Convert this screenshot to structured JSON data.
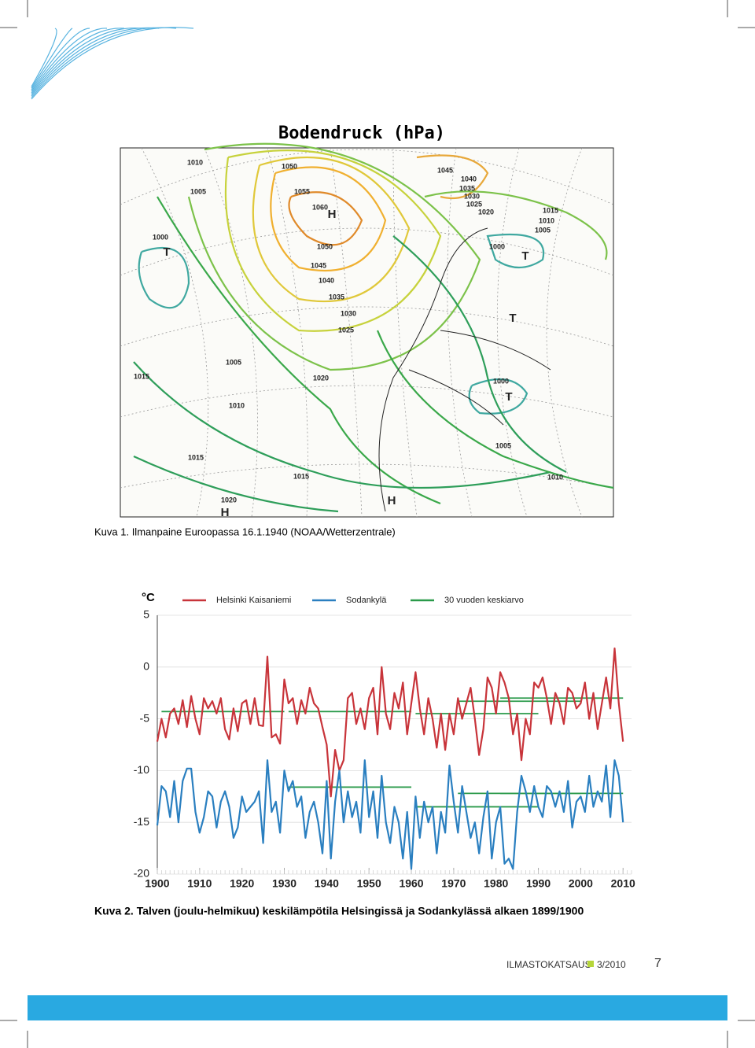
{
  "map": {
    "title": "Bodendruck (hPa)",
    "labels": [
      "1010",
      "1050",
      "1045",
      "1040",
      "1005",
      "1055",
      "1035",
      "1030",
      "1060",
      "H",
      "1025",
      "1020",
      "1015",
      "1010",
      "1005",
      "1000",
      "1050",
      "1000",
      "T",
      "T",
      "1045",
      "1040",
      "1035",
      "1030",
      "T",
      "1025",
      "1005",
      "1015",
      "1020",
      "1000",
      "T",
      "1010",
      "1005",
      "1015",
      "1015",
      "1010",
      "1020",
      "H",
      "H"
    ]
  },
  "captions": [
    "Kuva 1. Ilmanpaine Euroopassa 16.1.1940 (NOAA/Wetterzentrale)",
    "Kuva 2. Talven (joulu-helmikuu) keskilämpötila Helsingissä ja Sodankylässä alkaen 1899/1900"
  ],
  "chart_data": {
    "type": "line",
    "y_unit": "°C",
    "x": [
      1900,
      1901,
      1902,
      1903,
      1904,
      1905,
      1906,
      1907,
      1908,
      1909,
      1910,
      1911,
      1912,
      1913,
      1914,
      1915,
      1916,
      1917,
      1918,
      1919,
      1920,
      1921,
      1922,
      1923,
      1924,
      1925,
      1926,
      1927,
      1928,
      1929,
      1930,
      1931,
      1932,
      1933,
      1934,
      1935,
      1936,
      1937,
      1938,
      1939,
      1940,
      1941,
      1942,
      1943,
      1944,
      1945,
      1946,
      1947,
      1948,
      1949,
      1950,
      1951,
      1952,
      1953,
      1954,
      1955,
      1956,
      1957,
      1958,
      1959,
      1960,
      1961,
      1962,
      1963,
      1964,
      1965,
      1966,
      1967,
      1968,
      1969,
      1970,
      1971,
      1972,
      1973,
      1974,
      1975,
      1976,
      1977,
      1978,
      1979,
      1980,
      1981,
      1982,
      1983,
      1984,
      1985,
      1986,
      1987,
      1988,
      1989,
      1990,
      1991,
      1992,
      1993,
      1994,
      1995,
      1996,
      1997,
      1998,
      1999,
      2000,
      2001,
      2002,
      2003,
      2004,
      2005,
      2006,
      2007,
      2008,
      2009,
      2010
    ],
    "series": [
      {
        "name": "Helsinki Kaisaniemi",
        "color": "#c8343a",
        "values": [
          -7.2,
          -5.0,
          -6.8,
          -4.5,
          -4.0,
          -5.5,
          -3.2,
          -5.8,
          -2.8,
          -5.0,
          -6.5,
          -3.0,
          -4.0,
          -3.3,
          -4.5,
          -3.0,
          -6.0,
          -7.0,
          -4.0,
          -6.2,
          -3.5,
          -3.2,
          -5.5,
          -3.0,
          -5.6,
          -5.7,
          1.0,
          -6.8,
          -6.5,
          -7.4,
          -1.2,
          -3.5,
          -3.0,
          -5.5,
          -3.2,
          -4.5,
          -2.0,
          -3.5,
          -4.0,
          -5.8,
          -7.5,
          -12.5,
          -8.0,
          -10.0,
          -9.0,
          -3.0,
          -2.5,
          -5.5,
          -4.0,
          -6.0,
          -3.0,
          -2.0,
          -6.5,
          0.0,
          -4.5,
          -6.0,
          -2.5,
          -4.0,
          -1.5,
          -6.5,
          -3.5,
          -0.5,
          -4.0,
          -6.5,
          -3.0,
          -5.0,
          -7.8,
          -4.5,
          -8.0,
          -4.5,
          -6.5,
          -3.0,
          -5.0,
          -3.5,
          -2.0,
          -5.0,
          -8.5,
          -6.0,
          -1.0,
          -2.0,
          -4.5,
          -0.5,
          -1.5,
          -3.0,
          -6.5,
          -4.5,
          -9.0,
          -5.0,
          -6.5,
          -1.5,
          -2.0,
          -1.0,
          -3.0,
          -5.5,
          -2.5,
          -3.5,
          -5.5,
          -2.0,
          -2.5,
          -4.0,
          -3.5,
          -1.5,
          -5.0,
          -2.5,
          -6.0,
          -3.5,
          -1.0,
          -4.0,
          1.8,
          -3.5,
          -7.2
        ]
      },
      {
        "name": "Sodankylä",
        "color": "#2a7fc0",
        "values": [
          -15.3,
          -11.5,
          -12.0,
          -14.5,
          -11.0,
          -15.0,
          -11.0,
          -9.8,
          -9.8,
          -14.0,
          -16.0,
          -14.5,
          -12.0,
          -12.5,
          -15.5,
          -13.0,
          -12.0,
          -13.5,
          -16.5,
          -15.5,
          -12.5,
          -14.0,
          -13.5,
          -13.0,
          -12.0,
          -17.0,
          -9.0,
          -14.0,
          -13.0,
          -16.0,
          -10.0,
          -12.0,
          -11.0,
          -13.5,
          -12.5,
          -16.5,
          -14.0,
          -13.0,
          -15.0,
          -18.0,
          -11.0,
          -18.5,
          -13.0,
          -10.0,
          -15.0,
          -12.0,
          -14.5,
          -13.0,
          -16.0,
          -9.0,
          -14.5,
          -12.0,
          -16.5,
          -10.5,
          -15.0,
          -17.0,
          -13.5,
          -15.0,
          -18.5,
          -14.0,
          -19.5,
          -12.5,
          -16.5,
          -13.0,
          -15.0,
          -13.5,
          -18.0,
          -14.0,
          -16.0,
          -9.5,
          -13.0,
          -16.0,
          -11.5,
          -14.0,
          -16.5,
          -15.0,
          -18.0,
          -14.5,
          -12.0,
          -18.5,
          -15.0,
          -13.5,
          -19.0,
          -18.5,
          -19.5,
          -14.0,
          -10.5,
          -12.0,
          -14.0,
          -11.5,
          -13.5,
          -14.5,
          -11.5,
          -12.0,
          -13.5,
          -12.0,
          -14.0,
          -11.0,
          -15.5,
          -13.0,
          -12.5,
          -14.0,
          -10.5,
          -13.5,
          -12.0,
          -13.0,
          -9.5,
          -14.5,
          -9.0,
          -10.5,
          -15.0
        ]
      }
    ],
    "averages": {
      "name": "30 vuoden keskiarvo",
      "color": "#2a9a4a",
      "x_start": [
        1901,
        1931,
        1961,
        1971,
        1981,
        1931,
        1961,
        1971,
        1981
      ],
      "x_end": [
        1930,
        1960,
        1990,
        2000,
        2010,
        1960,
        1990,
        2000,
        2010
      ],
      "values": [
        -4.3,
        -4.3,
        -4.5,
        -3.3,
        -3.0,
        -11.6,
        -13.5,
        -12.2,
        -12.2
      ]
    },
    "xlim": [
      1900,
      2012
    ],
    "xticks": [
      1900,
      1910,
      1920,
      1930,
      1940,
      1950,
      1960,
      1970,
      1980,
      1990,
      2000,
      2010
    ],
    "ylim": [
      -20,
      5
    ],
    "yticks": [
      -20,
      -15,
      -10,
      -5,
      0,
      5
    ],
    "grid": true
  },
  "footer": {
    "publication": "ILMASTOKATSAUS",
    "issue": "3/2010",
    "page": "7"
  }
}
